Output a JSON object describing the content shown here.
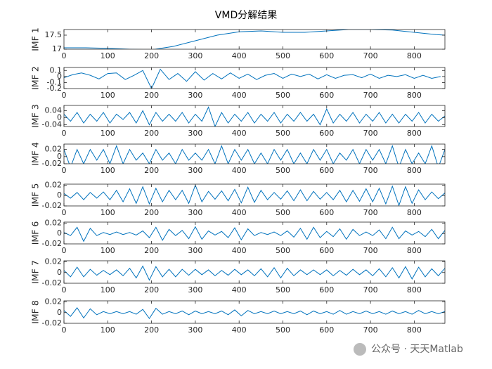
{
  "chart_data": [
    {
      "type": "line",
      "title": "VMD分解结果",
      "ylabel": "IMF 1",
      "color": "#0072bd",
      "x": [
        0,
        50,
        100,
        150,
        200,
        250,
        300,
        350,
        400,
        450,
        500,
        550,
        600,
        650,
        700,
        750,
        800,
        850,
        870
      ],
      "values": [
        17.05,
        17.05,
        17.03,
        17.0,
        16.98,
        17.1,
        17.3,
        17.5,
        17.62,
        17.65,
        17.6,
        17.6,
        17.65,
        17.7,
        17.7,
        17.68,
        17.6,
        17.52,
        17.5
      ],
      "xlim": [
        0,
        870
      ],
      "xticks": [
        0,
        100,
        200,
        300,
        400,
        500,
        600,
        700,
        800
      ],
      "ylim": [
        17,
        17.7
      ],
      "yticks": [
        17,
        17.5
      ]
    },
    {
      "type": "line",
      "ylabel": "IMF 2",
      "color": "#0072bd",
      "x": [
        0,
        20,
        40,
        60,
        80,
        100,
        120,
        140,
        160,
        180,
        200,
        220,
        240,
        260,
        280,
        300,
        320,
        340,
        360,
        380,
        400,
        420,
        440,
        460,
        480,
        500,
        520,
        540,
        560,
        580,
        600,
        620,
        640,
        660,
        680,
        700,
        720,
        740,
        760,
        780,
        800,
        820,
        840,
        860
      ],
      "values": [
        -0.02,
        0.03,
        0.06,
        0.02,
        -0.04,
        0.05,
        0.06,
        -0.05,
        0.02,
        0.1,
        -0.2,
        0.12,
        -0.05,
        0.05,
        -0.08,
        0.08,
        -0.06,
        0.05,
        -0.04,
        0.06,
        -0.03,
        0.04,
        -0.05,
        0.02,
        0.05,
        -0.03,
        0.04,
        0.0,
        0.04,
        -0.04,
        0.03,
        -0.03,
        0.02,
        0.03,
        -0.02,
        0.04,
        -0.03,
        0.02,
        0.0,
        0.03,
        -0.03,
        0.02,
        -0.03,
        0.0
      ],
      "xlim": [
        0,
        870
      ],
      "xticks": [
        0,
        100,
        200,
        300,
        400,
        500,
        600,
        700,
        800
      ],
      "ylim": [
        -0.2,
        0.15
      ],
      "yticks": [
        -0.2,
        -0.1,
        0,
        0.1
      ]
    },
    {
      "type": "line",
      "ylabel": "IMF 3",
      "color": "#0072bd",
      "x": [
        0,
        15,
        30,
        45,
        60,
        75,
        90,
        105,
        120,
        135,
        150,
        165,
        180,
        195,
        210,
        225,
        240,
        255,
        270,
        285,
        300,
        315,
        330,
        345,
        360,
        375,
        390,
        405,
        420,
        435,
        450,
        465,
        480,
        495,
        510,
        525,
        540,
        555,
        570,
        585,
        600,
        615,
        630,
        645,
        660,
        675,
        690,
        705,
        720,
        735,
        750,
        765,
        780,
        795,
        810,
        825,
        840,
        855,
        870
      ],
      "values": [
        0.02,
        -0.02,
        0.03,
        -0.03,
        0.02,
        -0.02,
        0.03,
        -0.03,
        0.02,
        -0.01,
        0.03,
        -0.03,
        0.04,
        -0.04,
        0.03,
        -0.02,
        0.02,
        -0.02,
        0.03,
        -0.03,
        0.02,
        -0.02,
        0.06,
        -0.05,
        0.03,
        -0.03,
        0.02,
        -0.02,
        0.03,
        -0.03,
        0.02,
        -0.02,
        0.03,
        -0.03,
        0.02,
        -0.02,
        0.03,
        -0.02,
        0.02,
        -0.04,
        0.05,
        -0.03,
        0.02,
        -0.02,
        0.03,
        -0.03,
        0.02,
        -0.02,
        0.03,
        -0.03,
        0.02,
        -0.03,
        0.02,
        -0.02,
        0.03,
        -0.03,
        0.02,
        -0.02,
        0.01
      ],
      "xlim": [
        0,
        870
      ],
      "xticks": [
        0,
        100,
        200,
        300,
        400,
        500,
        600,
        700,
        800
      ],
      "ylim": [
        -0.05,
        0.07
      ],
      "yticks": [
        -0.04,
        0,
        0.04
      ]
    },
    {
      "type": "line",
      "ylabel": "IMF 4",
      "color": "#0072bd",
      "x": [
        0,
        15,
        30,
        45,
        60,
        75,
        90,
        105,
        120,
        135,
        150,
        165,
        180,
        195,
        210,
        225,
        240,
        255,
        270,
        285,
        300,
        315,
        330,
        345,
        360,
        375,
        390,
        405,
        420,
        435,
        450,
        465,
        480,
        495,
        510,
        525,
        540,
        555,
        570,
        585,
        600,
        615,
        630,
        645,
        660,
        675,
        690,
        705,
        720,
        735,
        750,
        765,
        780,
        795,
        810,
        825,
        840,
        855,
        870
      ],
      "values": [
        0.02,
        -0.03,
        0.02,
        -0.02,
        0.02,
        -0.01,
        0.02,
        -0.02,
        0.03,
        -0.02,
        0.02,
        -0.01,
        0.01,
        -0.02,
        0.02,
        -0.01,
        0.01,
        -0.02,
        0.02,
        -0.01,
        0.01,
        -0.01,
        0.02,
        -0.02,
        0.03,
        -0.02,
        0.02,
        -0.01,
        0.02,
        -0.02,
        0.01,
        -0.02,
        0.02,
        -0.01,
        0.02,
        -0.02,
        0.01,
        -0.02,
        0.02,
        -0.01,
        0.02,
        -0.02,
        0.01,
        -0.01,
        0.02,
        -0.02,
        0.02,
        -0.01,
        0.02,
        -0.02,
        0.03,
        -0.03,
        0.02,
        -0.02,
        0.01,
        -0.02,
        0.03,
        -0.03,
        0.02
      ],
      "xlim": [
        0,
        870
      ],
      "xticks": [
        0,
        100,
        200,
        300,
        400,
        500,
        600,
        700,
        800
      ],
      "ylim": [
        -0.02,
        0.035
      ],
      "yticks": [
        -0.02,
        0,
        0.02
      ]
    },
    {
      "type": "line",
      "ylabel": "IMF 5",
      "color": "#0072bd",
      "x": [
        0,
        15,
        30,
        45,
        60,
        75,
        90,
        105,
        120,
        135,
        150,
        165,
        180,
        195,
        210,
        225,
        240,
        255,
        270,
        285,
        300,
        315,
        330,
        345,
        360,
        375,
        390,
        405,
        420,
        435,
        450,
        465,
        480,
        495,
        510,
        525,
        540,
        555,
        570,
        585,
        600,
        615,
        630,
        645,
        660,
        675,
        690,
        705,
        720,
        735,
        750,
        765,
        780,
        795,
        810,
        825,
        840,
        855,
        870
      ],
      "values": [
        0.004,
        -0.005,
        0.006,
        -0.008,
        0.006,
        -0.005,
        0.007,
        -0.008,
        0.01,
        -0.012,
        0.013,
        -0.015,
        0.017,
        -0.016,
        0.014,
        -0.012,
        0.01,
        -0.008,
        0.01,
        -0.015,
        0.02,
        -0.012,
        0.008,
        -0.007,
        0.009,
        -0.01,
        0.012,
        -0.014,
        0.016,
        -0.013,
        0.01,
        -0.008,
        0.006,
        -0.007,
        0.009,
        -0.01,
        0.011,
        -0.01,
        0.008,
        -0.007,
        0.006,
        -0.008,
        0.01,
        -0.012,
        0.01,
        -0.011,
        0.013,
        -0.012,
        0.014,
        -0.016,
        0.018,
        -0.019,
        0.017,
        -0.015,
        0.011,
        -0.008,
        0.007,
        -0.006,
        0.005
      ],
      "xlim": [
        0,
        870
      ],
      "xticks": [
        0,
        100,
        200,
        300,
        400,
        500,
        600,
        700,
        800
      ],
      "ylim": [
        -0.02,
        0.022
      ],
      "yticks": [
        -0.02,
        0,
        0.02
      ]
    },
    {
      "type": "line",
      "ylabel": "IMF 6",
      "color": "#0072bd",
      "x": [
        0,
        15,
        30,
        45,
        60,
        75,
        90,
        105,
        120,
        135,
        150,
        165,
        180,
        195,
        210,
        225,
        240,
        255,
        270,
        285,
        300,
        315,
        330,
        345,
        360,
        375,
        390,
        405,
        420,
        435,
        450,
        465,
        480,
        495,
        510,
        525,
        540,
        555,
        570,
        585,
        600,
        615,
        630,
        645,
        660,
        675,
        690,
        705,
        720,
        735,
        750,
        765,
        780,
        795,
        810,
        825,
        840,
        855,
        870
      ],
      "values": [
        0.002,
        -0.004,
        0.012,
        -0.015,
        0.01,
        -0.004,
        0.002,
        -0.002,
        0.003,
        -0.002,
        0.002,
        -0.003,
        0.005,
        -0.008,
        0.012,
        -0.013,
        0.008,
        -0.004,
        0.006,
        -0.01,
        0.013,
        -0.011,
        0.005,
        -0.003,
        0.004,
        -0.008,
        0.011,
        -0.012,
        0.009,
        -0.004,
        0.002,
        -0.002,
        0.003,
        -0.004,
        0.005,
        -0.007,
        0.01,
        -0.011,
        0.012,
        -0.008,
        0.004,
        -0.006,
        0.009,
        -0.011,
        0.008,
        -0.004,
        0.003,
        -0.004,
        0.007,
        -0.01,
        0.012,
        -0.01,
        0.005,
        -0.003,
        0.004,
        -0.006,
        0.008,
        -0.01,
        0.006
      ],
      "xlim": [
        0,
        870
      ],
      "xticks": [
        0,
        100,
        200,
        300,
        400,
        500,
        600,
        700,
        800
      ],
      "ylim": [
        -0.02,
        0.022
      ],
      "yticks": [
        -0.02,
        0,
        0.02
      ]
    },
    {
      "type": "line",
      "ylabel": "IMF 7",
      "color": "#0072bd",
      "x": [
        0,
        15,
        30,
        45,
        60,
        75,
        90,
        105,
        120,
        135,
        150,
        165,
        180,
        195,
        210,
        225,
        240,
        255,
        270,
        285,
        300,
        315,
        330,
        345,
        360,
        375,
        390,
        405,
        420,
        435,
        450,
        465,
        480,
        495,
        510,
        525,
        540,
        555,
        570,
        585,
        600,
        615,
        630,
        645,
        660,
        675,
        690,
        705,
        720,
        735,
        750,
        765,
        780,
        795,
        810,
        825,
        840,
        855,
        870
      ],
      "values": [
        0.004,
        -0.008,
        0.01,
        -0.008,
        0.006,
        -0.005,
        0.004,
        -0.004,
        0.005,
        -0.006,
        0.008,
        -0.01,
        0.012,
        -0.014,
        0.011,
        -0.008,
        0.006,
        -0.008,
        0.006,
        -0.005,
        0.006,
        -0.004,
        0.005,
        -0.006,
        0.004,
        -0.005,
        0.006,
        -0.004,
        0.005,
        -0.006,
        0.007,
        -0.008,
        0.009,
        -0.01,
        0.008,
        -0.006,
        0.005,
        -0.004,
        0.005,
        -0.004,
        0.005,
        -0.006,
        0.004,
        -0.005,
        0.006,
        -0.004,
        0.005,
        -0.006,
        0.007,
        -0.008,
        0.009,
        -0.01,
        0.011,
        -0.012,
        0.01,
        -0.008,
        0.007,
        -0.006,
        0.008
      ],
      "xlim": [
        0,
        870
      ],
      "xticks": [
        0,
        100,
        200,
        300,
        400,
        500,
        600,
        700,
        800
      ],
      "ylim": [
        -0.02,
        0.022
      ],
      "yticks": [
        -0.02,
        0,
        0.02
      ]
    },
    {
      "type": "line",
      "ylabel": "IMF 8",
      "color": "#0072bd",
      "x": [
        0,
        15,
        30,
        45,
        60,
        75,
        90,
        105,
        120,
        135,
        150,
        165,
        180,
        195,
        210,
        225,
        240,
        255,
        270,
        285,
        300,
        315,
        330,
        345,
        360,
        375,
        390,
        405,
        420,
        435,
        450,
        465,
        480,
        495,
        510,
        525,
        540,
        555,
        570,
        585,
        600,
        615,
        630,
        645,
        660,
        675,
        690,
        705,
        720,
        735,
        750,
        765,
        780,
        795,
        810,
        825,
        840,
        855,
        870
      ],
      "values": [
        0.004,
        -0.007,
        0.009,
        -0.01,
        0.007,
        -0.004,
        0.002,
        -0.002,
        0.002,
        -0.002,
        0.002,
        -0.003,
        0.006,
        -0.011,
        0.008,
        -0.003,
        0.002,
        -0.002,
        0.003,
        -0.004,
        0.003,
        -0.002,
        0.002,
        -0.002,
        0.003,
        -0.004,
        0.005,
        -0.006,
        0.004,
        -0.002,
        0.002,
        -0.002,
        0.003,
        -0.002,
        0.002,
        -0.002,
        0.003,
        -0.004,
        0.003,
        -0.002,
        0.002,
        -0.003,
        0.004,
        -0.003,
        0.002,
        -0.002,
        0.003,
        -0.002,
        0.002,
        -0.003,
        0.003,
        -0.002,
        0.002,
        -0.003,
        0.004,
        -0.002,
        0.002,
        -0.002,
        0.002
      ],
      "xlim": [
        0,
        870
      ],
      "xticks": [
        0,
        100,
        200,
        300,
        400,
        500,
        600,
        700,
        800
      ],
      "ylim": [
        -0.02,
        0.022
      ],
      "yticks": [
        -0.02,
        0,
        0.02
      ]
    }
  ],
  "watermark": "公众号 · 天天Matlab"
}
